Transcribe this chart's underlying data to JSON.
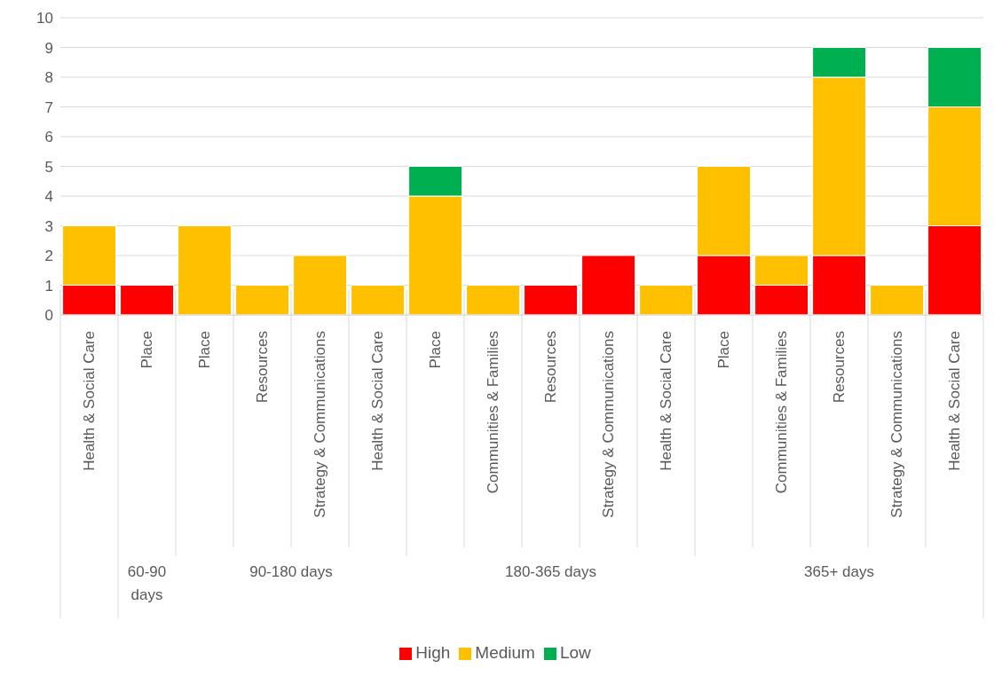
{
  "chart_data": {
    "type": "bar",
    "stacked": true,
    "categories": [
      "Health & Social Care",
      "Place",
      "Place",
      "Resources",
      "Strategy & Communications",
      "Health & Social Care",
      "Place",
      "Communities & Families",
      "Resources",
      "Strategy & Communications",
      "Health & Social Care",
      "Place",
      "Communities & Families",
      "Resources",
      "Strategy & Communications",
      "Health & Social Care"
    ],
    "series": [
      {
        "name": "High",
        "color": "#ff0000",
        "values": [
          1,
          1,
          0,
          0,
          0,
          0,
          0,
          0,
          1,
          2,
          0,
          2,
          1,
          2,
          0,
          3
        ]
      },
      {
        "name": "Medium",
        "color": "#ffc000",
        "values": [
          2,
          0,
          3,
          1,
          2,
          1,
          4,
          1,
          0,
          0,
          1,
          3,
          1,
          6,
          1,
          4
        ]
      },
      {
        "name": "Low",
        "color": "#00b050",
        "values": [
          0,
          0,
          0,
          0,
          0,
          0,
          1,
          0,
          0,
          0,
          0,
          0,
          0,
          1,
          0,
          2
        ]
      }
    ],
    "annotations": [
      "60-90 days",
      "90-180 days",
      "180-365 days",
      "365+ days"
    ],
    "ylim": [
      0,
      10
    ],
    "yticks": [
      0,
      1,
      2,
      3,
      4,
      5,
      6,
      7,
      8,
      9,
      10
    ],
    "grid": "y",
    "legend": "bottom"
  }
}
